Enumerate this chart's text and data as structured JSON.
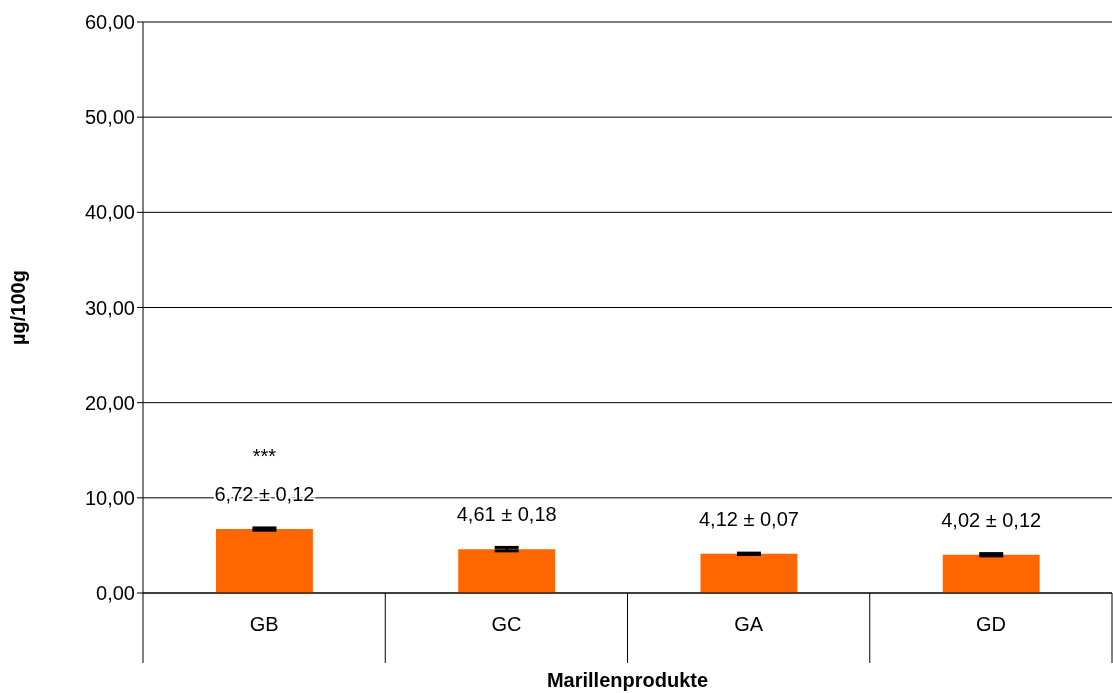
{
  "chart_data": {
    "type": "bar",
    "xlabel": "Marillenprodukte",
    "ylabel": "µg/100g",
    "categories": [
      "GB",
      "GC",
      "GA",
      "GD"
    ],
    "values": [
      6.72,
      4.61,
      4.12,
      4.02
    ],
    "errors": [
      0.12,
      0.18,
      0.07,
      0.12
    ],
    "value_labels": [
      "6,72 ± 0,12",
      "4,61 ± 0,18",
      "4,12 ± 0,07",
      "4,02 ± 0,12"
    ],
    "color": "#ff6600",
    "annotations": [
      "***"
    ],
    "ylim": [
      0,
      60
    ],
    "yticks": [
      {
        "value": 0,
        "label": "0,00"
      },
      {
        "value": 10,
        "label": "10,00"
      },
      {
        "value": 20,
        "label": "20,00"
      },
      {
        "value": 30,
        "label": "30,00"
      },
      {
        "value": 40,
        "label": "40,00"
      },
      {
        "value": 50,
        "label": "50,00"
      },
      {
        "value": 60,
        "label": "60,00"
      }
    ],
    "grid": "y",
    "legend": false
  }
}
